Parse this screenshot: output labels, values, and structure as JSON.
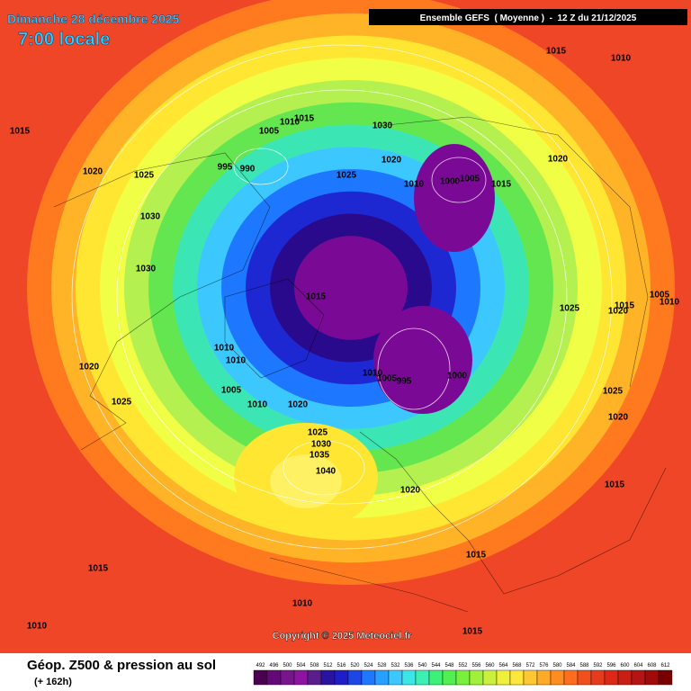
{
  "header": {
    "date": "Dimanche 28 décembre 2025",
    "time": "7:00 locale",
    "run": "Ensemble GEFS  ( Moyenne )  -  12 Z du 21/12/2025"
  },
  "copyright": "Copyright © 2025 Meteociel.fr",
  "footer": {
    "title": "Géop. Z500 & pression au sol",
    "lead": "(+ 162h)"
  },
  "isobar_labels": [
    1015,
    1010,
    1015,
    1005,
    1010,
    1015,
    1030,
    1020,
    1020,
    1020,
    1025,
    995,
    990,
    1025,
    1010,
    1000,
    1005,
    1015,
    1030,
    1030,
    1015,
    1025,
    1020,
    1015,
    1010,
    1005,
    1010,
    1010,
    1010,
    1005,
    995,
    1000,
    1020,
    1005,
    1025,
    1010,
    1020,
    1025,
    1020,
    1025,
    1030,
    1035,
    1040,
    1015,
    1020,
    1015,
    1015,
    1010,
    1010,
    1015
  ],
  "legend": {
    "scale": [
      492,
      496,
      500,
      504,
      508,
      512,
      516,
      520,
      524,
      528,
      532,
      536,
      540,
      544,
      548,
      552,
      556,
      560,
      564,
      568,
      572,
      576,
      580,
      584,
      588,
      592,
      596,
      600,
      604,
      608,
      612
    ],
    "colors": [
      "#4b0050",
      "#640a78",
      "#78148c",
      "#8c14a0",
      "#5a1e8c",
      "#2814a0",
      "#1e1ec8",
      "#1e46e6",
      "#1e78ff",
      "#28a0ff",
      "#3cc8ff",
      "#3ce6e6",
      "#3cf0b4",
      "#3cf078",
      "#50f050",
      "#78f03c",
      "#a0f03c",
      "#c8f03c",
      "#f0f03c",
      "#ffe63c",
      "#ffc832",
      "#ffaa28",
      "#ff8c1e",
      "#ff6e1e",
      "#f0501e",
      "#e63c1e",
      "#dc2814",
      "#c81e14",
      "#b41414",
      "#a00a0a",
      "#780000"
    ]
  }
}
